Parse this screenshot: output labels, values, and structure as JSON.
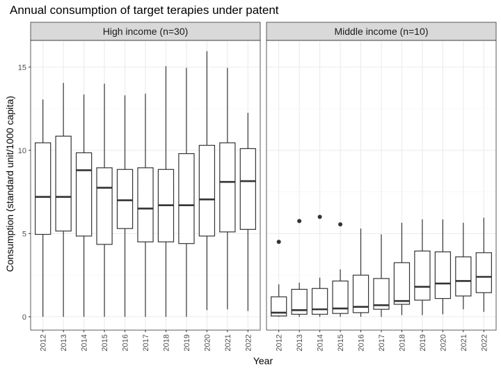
{
  "chart_data": {
    "type": "boxplot",
    "title": "Annual consumption of target terapies under patent",
    "xlabel": "Year",
    "ylabel": "Consumption (standard unit/1000 capita)",
    "ylim": [
      -0.8,
      16.6
    ],
    "yticks": [
      0,
      5,
      10,
      15
    ],
    "grid": true,
    "categories": [
      "2012",
      "2013",
      "2014",
      "2015",
      "2016",
      "2017",
      "2018",
      "2019",
      "2020",
      "2021",
      "2022"
    ],
    "panels": [
      {
        "label": "High income (n=30)",
        "boxes": [
          {
            "x": "2012",
            "min": 0,
            "q1": 4.95,
            "median": 7.2,
            "q3": 10.45,
            "max": 13.05,
            "outliers": []
          },
          {
            "x": "2013",
            "min": 0,
            "q1": 5.15,
            "median": 7.2,
            "q3": 10.85,
            "max": 14.05,
            "outliers": []
          },
          {
            "x": "2014",
            "min": 0,
            "q1": 4.85,
            "median": 8.8,
            "q3": 9.85,
            "max": 13.35,
            "outliers": []
          },
          {
            "x": "2015",
            "min": 0,
            "q1": 4.35,
            "median": 7.75,
            "q3": 8.95,
            "max": 14.0,
            "outliers": []
          },
          {
            "x": "2016",
            "min": 0,
            "q1": 5.3,
            "median": 7.0,
            "q3": 8.85,
            "max": 13.3,
            "outliers": []
          },
          {
            "x": "2017",
            "min": 0,
            "q1": 4.5,
            "median": 6.5,
            "q3": 8.95,
            "max": 13.4,
            "outliers": []
          },
          {
            "x": "2018",
            "min": 0,
            "q1": 4.5,
            "median": 6.7,
            "q3": 8.85,
            "max": 15.05,
            "outliers": []
          },
          {
            "x": "2019",
            "min": 0,
            "q1": 4.4,
            "median": 6.7,
            "q3": 9.8,
            "max": 14.95,
            "outliers": []
          },
          {
            "x": "2020",
            "min": 0.4,
            "q1": 4.85,
            "median": 7.05,
            "q3": 10.3,
            "max": 15.95,
            "outliers": []
          },
          {
            "x": "2021",
            "min": 0.45,
            "q1": 5.1,
            "median": 8.1,
            "q3": 10.45,
            "max": 14.95,
            "outliers": []
          },
          {
            "x": "2022",
            "min": 0.35,
            "q1": 5.25,
            "median": 8.15,
            "q3": 10.1,
            "max": 12.25,
            "outliers": []
          }
        ]
      },
      {
        "label": "Middle income (n=10)",
        "boxes": [
          {
            "x": "2012",
            "min": 0,
            "q1": 0.05,
            "median": 0.25,
            "q3": 1.2,
            "max": 1.95,
            "outliers": [
              4.5
            ]
          },
          {
            "x": "2013",
            "min": 0,
            "q1": 0.15,
            "median": 0.4,
            "q3": 1.65,
            "max": 2.05,
            "outliers": [
              5.75
            ]
          },
          {
            "x": "2014",
            "min": 0,
            "q1": 0.15,
            "median": 0.45,
            "q3": 1.7,
            "max": 2.35,
            "outliers": [
              6.0
            ]
          },
          {
            "x": "2015",
            "min": 0,
            "q1": 0.2,
            "median": 0.5,
            "q3": 2.15,
            "max": 2.85,
            "outliers": [
              5.55
            ]
          },
          {
            "x": "2016",
            "min": 0,
            "q1": 0.25,
            "median": 0.6,
            "q3": 2.5,
            "max": 5.3,
            "outliers": []
          },
          {
            "x": "2017",
            "min": 0,
            "q1": 0.45,
            "median": 0.7,
            "q3": 2.3,
            "max": 4.95,
            "outliers": []
          },
          {
            "x": "2018",
            "min": 0.1,
            "q1": 0.75,
            "median": 0.95,
            "q3": 3.25,
            "max": 5.65,
            "outliers": []
          },
          {
            "x": "2019",
            "min": 0.1,
            "q1": 1.0,
            "median": 1.8,
            "q3": 3.95,
            "max": 5.85,
            "outliers": []
          },
          {
            "x": "2020",
            "min": 0.15,
            "q1": 1.1,
            "median": 2.0,
            "q3": 3.9,
            "max": 5.85,
            "outliers": []
          },
          {
            "x": "2021",
            "min": 0.45,
            "q1": 1.25,
            "median": 2.15,
            "q3": 3.6,
            "max": 5.65,
            "outliers": []
          },
          {
            "x": "2022",
            "min": 0.3,
            "q1": 1.45,
            "median": 2.4,
            "q3": 3.85,
            "max": 5.95,
            "outliers": []
          }
        ]
      }
    ],
    "colors": {
      "strip_fill": "#d9d9d9",
      "strip_border": "#333333",
      "panel_border": "#333333",
      "grid_major": "#ebebeb",
      "grid_minor": "#f5f5f5",
      "box_stroke": "#333333",
      "box_fill": "#ffffff",
      "text": "#000000",
      "tick_text": "#4d4d4d"
    }
  }
}
